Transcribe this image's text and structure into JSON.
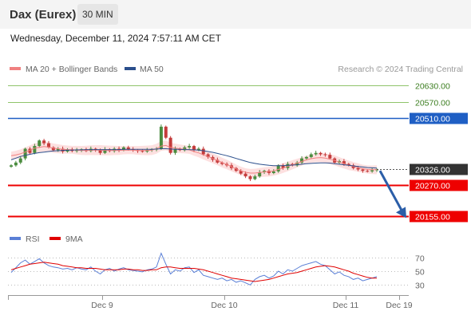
{
  "header": {
    "instrument": "Dax (Eurex)",
    "interval": "30 MIN",
    "datetime": "Wednesday, December 11, 2024 7:57:11 AM CET"
  },
  "legend": {
    "items": [
      {
        "label": "MA 20 + Bollinger Bands",
        "color": "#f08080"
      },
      {
        "label": "MA 50",
        "color": "#2b4f8c"
      }
    ],
    "copyright": "Research © 2024 Trading Central"
  },
  "rsi_legend": {
    "items": [
      {
        "label": "RSI",
        "color": "#5a7fd6"
      },
      {
        "label": "9MA",
        "color": "#e00000"
      }
    ]
  },
  "colors": {
    "resistance_green": "#8fc46a",
    "resistance_blue": "#1f5fc4",
    "support_red": "#ee0000",
    "last_price_box": "#333333",
    "arrow": "#2b5ea8",
    "bollinger_fill": "#fde0e0",
    "candle_up": "#4a8c3f",
    "candle_down": "#c43c3c"
  },
  "chart_data": {
    "type": "candlestick",
    "x_labels": [
      "Dec 9",
      "Dec 10",
      "Dec 11",
      "Dec 19"
    ],
    "y_range": [
      20130,
      20650
    ],
    "levels": [
      {
        "value": 20630.0,
        "label": "20630.00",
        "kind": "resistance",
        "color": "#8fc46a"
      },
      {
        "value": 20570.0,
        "label": "20570.00",
        "kind": "resistance",
        "color": "#8fc46a"
      },
      {
        "value": 20510.0,
        "label": "20510.00",
        "kind": "pivot",
        "color": "#1f5fc4"
      },
      {
        "value": 20326.0,
        "label": "20326.00",
        "kind": "last",
        "color": "#333333"
      },
      {
        "value": 20270.0,
        "label": "20270.00",
        "kind": "support",
        "color": "#ee0000"
      },
      {
        "value": 20155.0,
        "label": "20155.00",
        "kind": "support",
        "color": "#ee0000"
      }
    ],
    "closes": [
      20340,
      20350,
      20365,
      20400,
      20385,
      20410,
      20430,
      20420,
      20405,
      20395,
      20400,
      20390,
      20398,
      20392,
      20395,
      20398,
      20392,
      20400,
      20395,
      20385,
      20398,
      20392,
      20400,
      20395,
      20405,
      20398,
      20395,
      20392,
      20390,
      20395,
      20398,
      20400,
      20480,
      20440,
      20385,
      20400,
      20395,
      20405,
      20410,
      20395,
      20400,
      20380,
      20370,
      20360,
      20350,
      20345,
      20340,
      20330,
      20320,
      20310,
      20300,
      20290,
      20300,
      20315,
      20320,
      20312,
      20318,
      20340,
      20330,
      20345,
      20340,
      20350,
      20365,
      20370,
      20380,
      20385,
      20380,
      20378,
      20365,
      20350,
      20355,
      20345,
      20340,
      20330,
      20325,
      20320,
      20318,
      20322,
      20326
    ],
    "ma20": [
      20375,
      20378,
      20382,
      20388,
      20395,
      20402,
      20405,
      20408,
      20406,
      20402,
      20400,
      20398,
      20397,
      20396,
      20395,
      20394,
      20394,
      20395,
      20395,
      20395,
      20394,
      20394,
      20394,
      20394,
      20395,
      20395,
      20395,
      20394,
      20394,
      20394,
      20395,
      20400,
      20410,
      20412,
      20405,
      20402,
      20400,
      20398,
      20396,
      20390,
      20385,
      20378,
      20372,
      20365,
      20358,
      20350,
      20343,
      20335,
      20327,
      20320,
      20315,
      20312,
      20312,
      20314,
      20316,
      20317,
      20320,
      20325,
      20330,
      20336,
      20342,
      20348,
      20354,
      20360,
      20364,
      20367,
      20368,
      20366,
      20362,
      20358,
      20352,
      20346,
      20340,
      20336,
      20332,
      20328,
      20325,
      20324,
      20324
    ],
    "ma50": [
      20360,
      20366,
      20372,
      20376,
      20380,
      20383,
      20386,
      20388,
      20390,
      20392,
      20393,
      20394,
      20395,
      20395,
      20396,
      20396,
      20397,
      20397,
      20397,
      20397,
      20397,
      20397,
      20397,
      20397,
      20398,
      20398,
      20398,
      20398,
      20398,
      20398,
      20398,
      20399,
      20400,
      20400,
      20399,
      20398,
      20398,
      20397,
      20397,
      20396,
      20395,
      20393,
      20390,
      20387,
      20383,
      20379,
      20375,
      20370,
      20365,
      20360,
      20355,
      20350,
      20347,
      20344,
      20342,
      20340,
      20339,
      20339,
      20339,
      20340,
      20341,
      20342,
      20344,
      20346,
      20347,
      20348,
      20349,
      20349,
      20348,
      20346,
      20344,
      20342,
      20340,
      20338,
      20336,
      20334,
      20332,
      20331,
      20330
    ],
    "rsi": {
      "y_ticks": [
        70,
        50,
        30
      ],
      "y_range": [
        20,
        80
      ],
      "values": [
        48,
        55,
        62,
        66,
        60,
        64,
        68,
        62,
        58,
        56,
        55,
        53,
        54,
        52,
        55,
        53,
        52,
        56,
        50,
        46,
        52,
        54,
        50,
        53,
        55,
        52,
        51,
        50,
        49,
        52,
        53,
        56,
        76,
        60,
        46,
        52,
        50,
        55,
        56,
        48,
        52,
        44,
        42,
        40,
        38,
        40,
        36,
        38,
        34,
        36,
        33,
        30,
        38,
        42,
        44,
        40,
        43,
        50,
        46,
        52,
        50,
        54,
        58,
        60,
        62,
        64,
        60,
        58,
        52,
        46,
        49,
        44,
        42,
        38,
        40,
        36,
        38,
        40,
        42
      ],
      "ma9": [
        52,
        54,
        56,
        58,
        60,
        61,
        62,
        63,
        62,
        61,
        60,
        58,
        57,
        56,
        55,
        55,
        54,
        54,
        54,
        53,
        52,
        52,
        52,
        52,
        53,
        53,
        52,
        52,
        51,
        51,
        52,
        52,
        55,
        56,
        56,
        55,
        54,
        54,
        54,
        54,
        53,
        52,
        50,
        48,
        46,
        44,
        42,
        40,
        39,
        38,
        37,
        36,
        35,
        36,
        37,
        38,
        40,
        42,
        44,
        46,
        47,
        48,
        50,
        52,
        54,
        56,
        57,
        58,
        57,
        56,
        54,
        52,
        50,
        47,
        45,
        43,
        41,
        40,
        40
      ]
    }
  }
}
